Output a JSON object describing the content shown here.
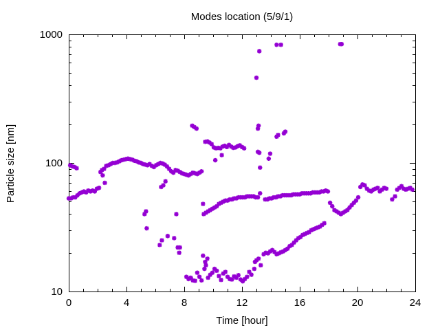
{
  "chart_data": {
    "type": "scatter",
    "title": "Modes location (5/9/1)",
    "xlabel": "Time [hour]",
    "ylabel": "Particle size [nm]",
    "xlim": [
      0,
      24
    ],
    "ylim": [
      10,
      1000
    ],
    "yscale": "log",
    "grid": false,
    "legend": "none",
    "x_ticks": [
      0,
      4,
      8,
      12,
      16,
      20,
      24
    ],
    "x_tick_labels": [
      "0",
      "4",
      "8",
      "12",
      "16",
      "20",
      "24"
    ],
    "y_ticks": [
      10,
      100,
      1000
    ],
    "y_tick_labels": [
      "10",
      "100",
      "1000"
    ],
    "marker_color": "#9400d3",
    "series": [
      {
        "points": [
          [
            0.0,
            53
          ],
          [
            0.15,
            53
          ],
          [
            0.3,
            54
          ],
          [
            0.45,
            54
          ],
          [
            0.6,
            56
          ],
          [
            0.75,
            58
          ],
          [
            0.9,
            59
          ],
          [
            1.05,
            60
          ],
          [
            1.2,
            59
          ],
          [
            1.35,
            61
          ],
          [
            1.5,
            60
          ],
          [
            1.65,
            61
          ],
          [
            1.8,
            60
          ],
          [
            1.95,
            63
          ],
          [
            2.1,
            64
          ],
          [
            2.3,
            88
          ],
          [
            2.45,
            90
          ],
          [
            2.6,
            95
          ],
          [
            2.75,
            96
          ],
          [
            2.9,
            98
          ],
          [
            3.05,
            100
          ],
          [
            3.2,
            100
          ],
          [
            3.35,
            101
          ],
          [
            3.5,
            103
          ],
          [
            3.65,
            105
          ],
          [
            3.8,
            106
          ],
          [
            3.95,
            107
          ],
          [
            4.1,
            108
          ],
          [
            4.25,
            107
          ],
          [
            4.4,
            106
          ],
          [
            4.55,
            104
          ],
          [
            4.7,
            103
          ],
          [
            4.85,
            101
          ],
          [
            5.0,
            100
          ],
          [
            5.15,
            98
          ],
          [
            5.3,
            97
          ],
          [
            5.45,
            96
          ],
          [
            5.6,
            98
          ],
          [
            5.75,
            95
          ],
          [
            5.9,
            93
          ],
          [
            6.05,
            96
          ],
          [
            6.2,
            98
          ],
          [
            6.35,
            100
          ],
          [
            6.5,
            99
          ],
          [
            6.65,
            97
          ],
          [
            6.8,
            94
          ],
          [
            6.95,
            90
          ],
          [
            7.1,
            86
          ],
          [
            7.25,
            84
          ],
          [
            7.4,
            88
          ],
          [
            7.55,
            87
          ],
          [
            7.7,
            85
          ],
          [
            7.85,
            83
          ],
          [
            8.0,
            82
          ],
          [
            8.15,
            81
          ],
          [
            8.3,
            80
          ],
          [
            8.45,
            82
          ],
          [
            8.6,
            84
          ],
          [
            8.75,
            83
          ],
          [
            8.9,
            82
          ],
          [
            9.05,
            84
          ],
          [
            9.2,
            86
          ],
          [
            9.35,
            40
          ],
          [
            9.5,
            41
          ],
          [
            9.65,
            42
          ],
          [
            9.8,
            43
          ],
          [
            9.95,
            44
          ],
          [
            10.1,
            45
          ],
          [
            10.25,
            46
          ],
          [
            10.4,
            48
          ],
          [
            10.55,
            49
          ],
          [
            10.7,
            50
          ],
          [
            10.85,
            51
          ],
          [
            11.0,
            51
          ],
          [
            11.15,
            52
          ],
          [
            11.3,
            52
          ],
          [
            11.45,
            53
          ],
          [
            11.6,
            53
          ],
          [
            11.75,
            54
          ],
          [
            11.9,
            54
          ],
          [
            12.05,
            54
          ],
          [
            12.2,
            54
          ],
          [
            12.35,
            55
          ],
          [
            12.5,
            55
          ],
          [
            12.65,
            55
          ],
          [
            12.8,
            55
          ],
          [
            12.95,
            54
          ],
          [
            13.1,
            54
          ],
          [
            13.25,
            58
          ],
          [
            13.6,
            52
          ],
          [
            13.75,
            52
          ],
          [
            13.9,
            53
          ],
          [
            14.05,
            53
          ],
          [
            14.2,
            54
          ],
          [
            14.35,
            54
          ],
          [
            14.5,
            55
          ],
          [
            14.65,
            55
          ],
          [
            14.8,
            56
          ],
          [
            14.95,
            56
          ],
          [
            15.1,
            56
          ],
          [
            15.25,
            56
          ],
          [
            15.4,
            56
          ],
          [
            15.55,
            57
          ],
          [
            15.7,
            57
          ],
          [
            15.85,
            57
          ],
          [
            16.0,
            57
          ],
          [
            16.15,
            58
          ],
          [
            16.3,
            58
          ],
          [
            16.45,
            58
          ],
          [
            16.6,
            58
          ],
          [
            16.75,
            58
          ],
          [
            16.9,
            59
          ],
          [
            17.05,
            59
          ],
          [
            17.2,
            59
          ],
          [
            17.35,
            59
          ],
          [
            17.5,
            60
          ],
          [
            17.65,
            60
          ],
          [
            17.8,
            61
          ],
          [
            17.95,
            60
          ],
          [
            18.1,
            49
          ],
          [
            18.25,
            46
          ],
          [
            18.4,
            43
          ],
          [
            18.55,
            42
          ],
          [
            18.7,
            41
          ],
          [
            18.85,
            40
          ],
          [
            19.0,
            41
          ],
          [
            19.15,
            42
          ],
          [
            19.3,
            43
          ],
          [
            19.45,
            45
          ],
          [
            19.6,
            47
          ],
          [
            19.75,
            49
          ],
          [
            19.9,
            51
          ],
          [
            20.05,
            54
          ],
          [
            20.2,
            65
          ],
          [
            20.35,
            68
          ],
          [
            20.5,
            67
          ],
          [
            20.65,
            63
          ],
          [
            20.8,
            61
          ],
          [
            20.95,
            60
          ],
          [
            21.1,
            62
          ],
          [
            21.25,
            63
          ],
          [
            21.4,
            64
          ],
          [
            21.55,
            60
          ],
          [
            21.7,
            62
          ],
          [
            21.85,
            64
          ],
          [
            22.0,
            63
          ],
          [
            22.4,
            52
          ],
          [
            22.6,
            55
          ],
          [
            22.75,
            62
          ],
          [
            22.9,
            64
          ],
          [
            23.05,
            66
          ],
          [
            23.2,
            63
          ],
          [
            23.35,
            62
          ],
          [
            23.5,
            63
          ],
          [
            23.65,
            64
          ],
          [
            23.8,
            62
          ],
          [
            0.1,
            96
          ],
          [
            0.25,
            94
          ],
          [
            0.4,
            93
          ],
          [
            0.55,
            91
          ],
          [
            2.2,
            85
          ],
          [
            2.35,
            80
          ],
          [
            2.5,
            70
          ],
          [
            6.4,
            65
          ],
          [
            6.55,
            67
          ],
          [
            6.7,
            72
          ],
          [
            8.55,
            195
          ],
          [
            8.7,
            190
          ],
          [
            8.85,
            185
          ],
          [
            9.45,
            146
          ],
          [
            9.6,
            147
          ],
          [
            9.75,
            144
          ],
          [
            9.9,
            140
          ],
          [
            10.05,
            132
          ],
          [
            10.2,
            130
          ],
          [
            10.35,
            131
          ],
          [
            10.5,
            130
          ],
          [
            10.65,
            134
          ],
          [
            10.8,
            136
          ],
          [
            10.95,
            133
          ],
          [
            11.1,
            138
          ],
          [
            11.25,
            134
          ],
          [
            11.4,
            131
          ],
          [
            11.55,
            132
          ],
          [
            11.7,
            135
          ],
          [
            11.85,
            137
          ],
          [
            12.0,
            133
          ],
          [
            12.15,
            130
          ],
          [
            10.15,
            105
          ],
          [
            10.6,
            115
          ],
          [
            9.3,
            48
          ],
          [
            13.0,
            460
          ],
          [
            13.2,
            740
          ],
          [
            14.4,
            830
          ],
          [
            14.7,
            830
          ],
          [
            18.8,
            840
          ],
          [
            18.9,
            840
          ],
          [
            13.1,
            185
          ],
          [
            13.15,
            195
          ],
          [
            13.1,
            122
          ],
          [
            13.2,
            120
          ],
          [
            13.25,
            92
          ],
          [
            14.4,
            160
          ],
          [
            14.5,
            165
          ],
          [
            14.9,
            170
          ],
          [
            15.0,
            175
          ],
          [
            13.85,
            108
          ],
          [
            13.95,
            118
          ],
          [
            5.25,
            40
          ],
          [
            5.35,
            42
          ],
          [
            5.4,
            31
          ],
          [
            6.3,
            23
          ],
          [
            6.45,
            25
          ],
          [
            6.85,
            27
          ],
          [
            7.3,
            26
          ],
          [
            7.55,
            22
          ],
          [
            7.65,
            20
          ],
          [
            7.7,
            22
          ],
          [
            7.45,
            40
          ],
          [
            8.15,
            13
          ],
          [
            8.3,
            12.5
          ],
          [
            8.45,
            12.8
          ],
          [
            8.6,
            12.2
          ],
          [
            8.75,
            12.1
          ],
          [
            8.9,
            14
          ],
          [
            9.05,
            13
          ],
          [
            9.2,
            12.2
          ],
          [
            9.3,
            19
          ],
          [
            9.4,
            15
          ],
          [
            9.5,
            16
          ],
          [
            9.65,
            12.8
          ],
          [
            9.8,
            13.5
          ],
          [
            9.95,
            14
          ],
          [
            10.1,
            15
          ],
          [
            10.25,
            14.5
          ],
          [
            10.4,
            13.2
          ],
          [
            10.55,
            12.3
          ],
          [
            10.7,
            13.8
          ],
          [
            10.85,
            14.2
          ],
          [
            11.0,
            13
          ],
          [
            11.15,
            12.5
          ],
          [
            11.3,
            12.4
          ],
          [
            11.45,
            13.1
          ],
          [
            11.6,
            12.8
          ],
          [
            11.75,
            13.4
          ],
          [
            11.9,
            12.4
          ],
          [
            12.05,
            12
          ],
          [
            12.2,
            12.5
          ],
          [
            12.35,
            13
          ],
          [
            12.5,
            14.2
          ],
          [
            12.65,
            13.5
          ],
          [
            12.85,
            15
          ],
          [
            13.0,
            17.5
          ],
          [
            13.15,
            18
          ],
          [
            13.3,
            16
          ],
          [
            13.5,
            19.5
          ],
          [
            13.65,
            20
          ],
          [
            13.8,
            19.8
          ],
          [
            13.95,
            20.5
          ],
          [
            14.1,
            21
          ],
          [
            14.25,
            20.3
          ],
          [
            14.4,
            19.5
          ],
          [
            14.55,
            19.8
          ],
          [
            14.7,
            20.2
          ],
          [
            14.85,
            20.5
          ],
          [
            15.0,
            21
          ],
          [
            15.15,
            21.5
          ],
          [
            15.3,
            22.5
          ],
          [
            15.45,
            23
          ],
          [
            15.6,
            24
          ],
          [
            15.75,
            25
          ],
          [
            15.9,
            26
          ],
          [
            16.05,
            26.5
          ],
          [
            16.2,
            27.5
          ],
          [
            16.35,
            28
          ],
          [
            16.5,
            28.5
          ],
          [
            16.65,
            29
          ],
          [
            16.8,
            30
          ],
          [
            16.95,
            30.5
          ],
          [
            17.1,
            31
          ],
          [
            17.25,
            31.5
          ],
          [
            17.4,
            32
          ],
          [
            17.55,
            33
          ],
          [
            17.7,
            34
          ],
          [
            9.45,
            17
          ],
          [
            9.6,
            18
          ],
          [
            12.9,
            17
          ]
        ]
      }
    ]
  }
}
